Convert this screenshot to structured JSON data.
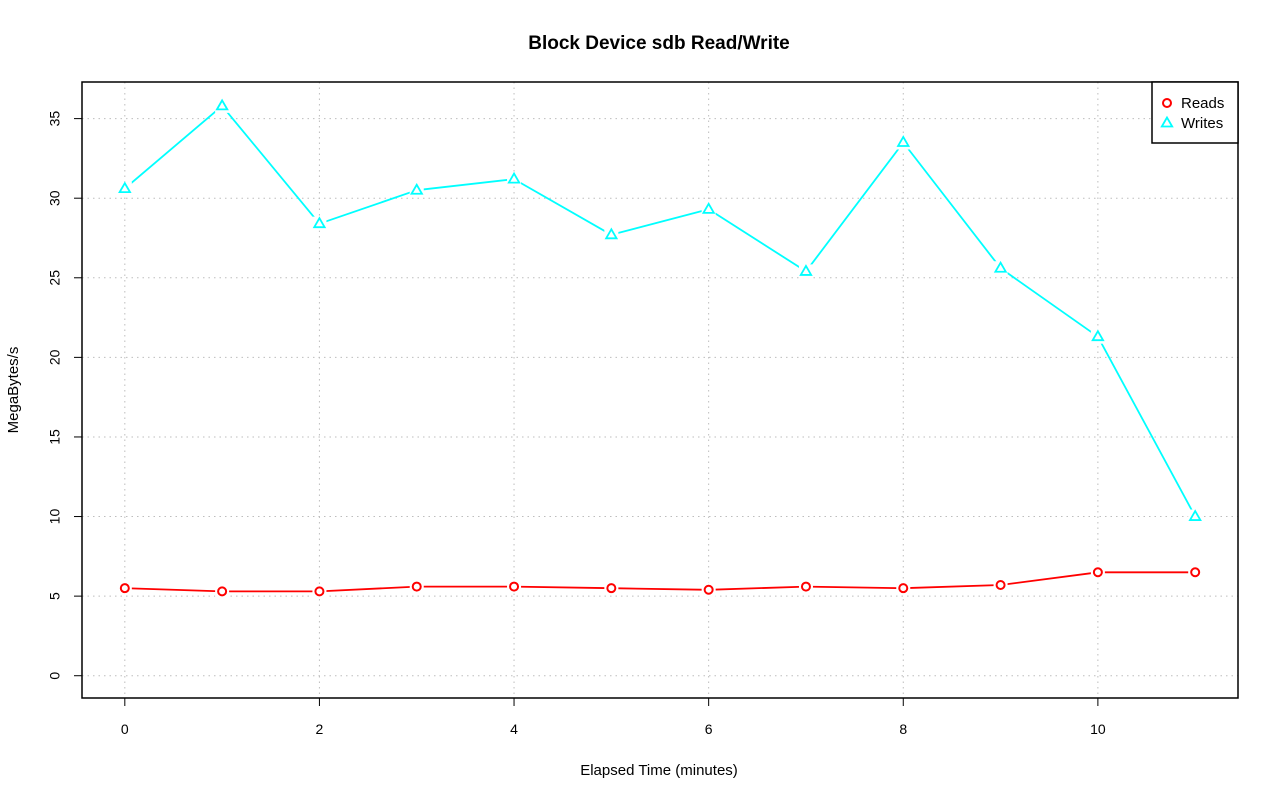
{
  "chart_data": {
    "type": "line",
    "title": "Block Device sdb Read/Write",
    "xlabel": "Elapsed Time (minutes)",
    "ylabel": "MegaBytes/s",
    "xlim": [
      -0.44,
      11.44
    ],
    "ylim": [
      -1.4,
      37.3
    ],
    "xticks": [
      0,
      2,
      4,
      6,
      8,
      10
    ],
    "yticks": [
      0,
      5,
      10,
      15,
      20,
      25,
      30,
      35
    ],
    "grid": true,
    "grid_style": "dotted",
    "legend_position": "top-right",
    "x": [
      0,
      1,
      2,
      3,
      4,
      5,
      6,
      7,
      8,
      9,
      10,
      11
    ],
    "series": [
      {
        "name": "Reads",
        "color": "#ff0000",
        "marker": "circle",
        "values": [
          5.5,
          5.3,
          5.3,
          5.6,
          5.6,
          5.5,
          5.4,
          5.6,
          5.5,
          5.7,
          6.5,
          6.5
        ]
      },
      {
        "name": "Writes",
        "color": "#00ffff",
        "marker": "triangle",
        "values": [
          30.6,
          35.8,
          28.4,
          30.5,
          31.2,
          27.7,
          29.3,
          25.4,
          33.5,
          25.6,
          21.3,
          10.0
        ]
      }
    ]
  }
}
